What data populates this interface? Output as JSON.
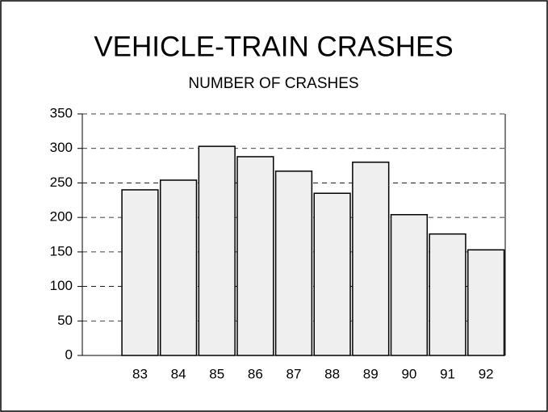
{
  "chart_data": {
    "type": "bar",
    "title": "VEHICLE-TRAIN CRASHES",
    "subtitle": "NUMBER OF CRASHES",
    "categories": [
      "83",
      "84",
      "85",
      "86",
      "87",
      "88",
      "89",
      "90",
      "91",
      "92"
    ],
    "values": [
      240,
      254,
      303,
      288,
      267,
      235,
      280,
      204,
      176,
      153
    ],
    "color": "#efefef",
    "ylim": [
      0,
      350
    ],
    "yticks": [
      0,
      50,
      100,
      150,
      200,
      250,
      300,
      350
    ],
    "grid": true
  }
}
